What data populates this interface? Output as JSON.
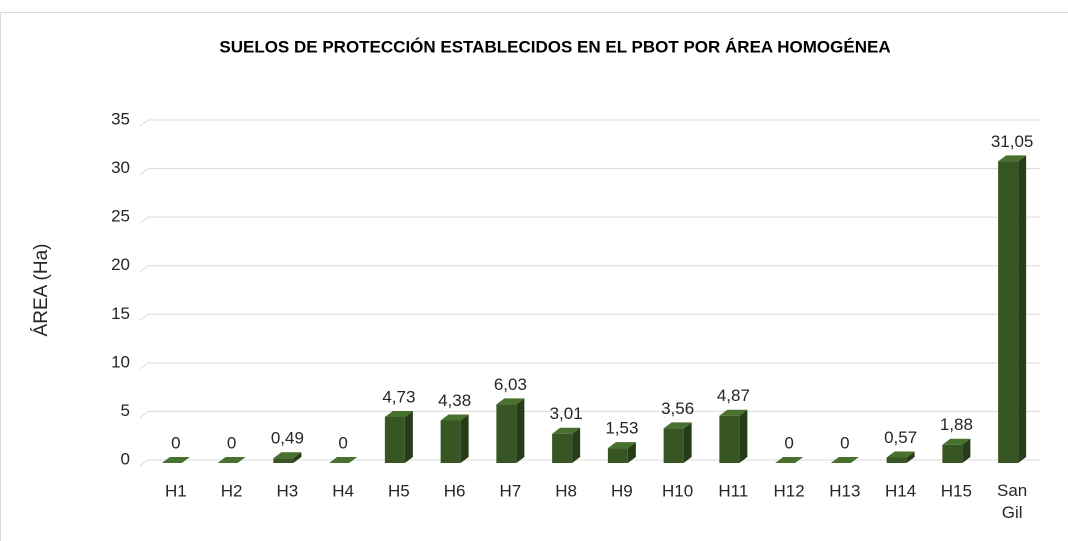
{
  "chart_data": {
    "type": "bar3d",
    "title": "SUELOS DE PROTECCIÓN ESTABLECIDOS EN EL PBOT POR ÁREA HOMOGÉNEA",
    "y_label": "ÁREA (Ha)",
    "categories": [
      "H1",
      "H2",
      "H3",
      "H4",
      "H5",
      "H6",
      "H7",
      "H8",
      "H9",
      "H10",
      "H11",
      "H12",
      "H13",
      "H14",
      "H15",
      "San Gil"
    ],
    "values": [
      0,
      0,
      0.49,
      0,
      4.73,
      4.38,
      6.03,
      3.01,
      1.53,
      3.56,
      4.87,
      0,
      0,
      0.57,
      1.88,
      31.05
    ],
    "value_labels": [
      "0",
      "0",
      "0,49",
      "0",
      "4,73",
      "4,38",
      "6,03",
      "3,01",
      "1,53",
      "3,56",
      "4,87",
      "0",
      "0",
      "0,57",
      "1,88",
      "31,05"
    ],
    "color": "#375623",
    "ylim": [
      0,
      35
    ],
    "yticks": [
      0,
      5,
      10,
      15,
      20,
      25,
      30,
      35
    ],
    "grid": true
  }
}
